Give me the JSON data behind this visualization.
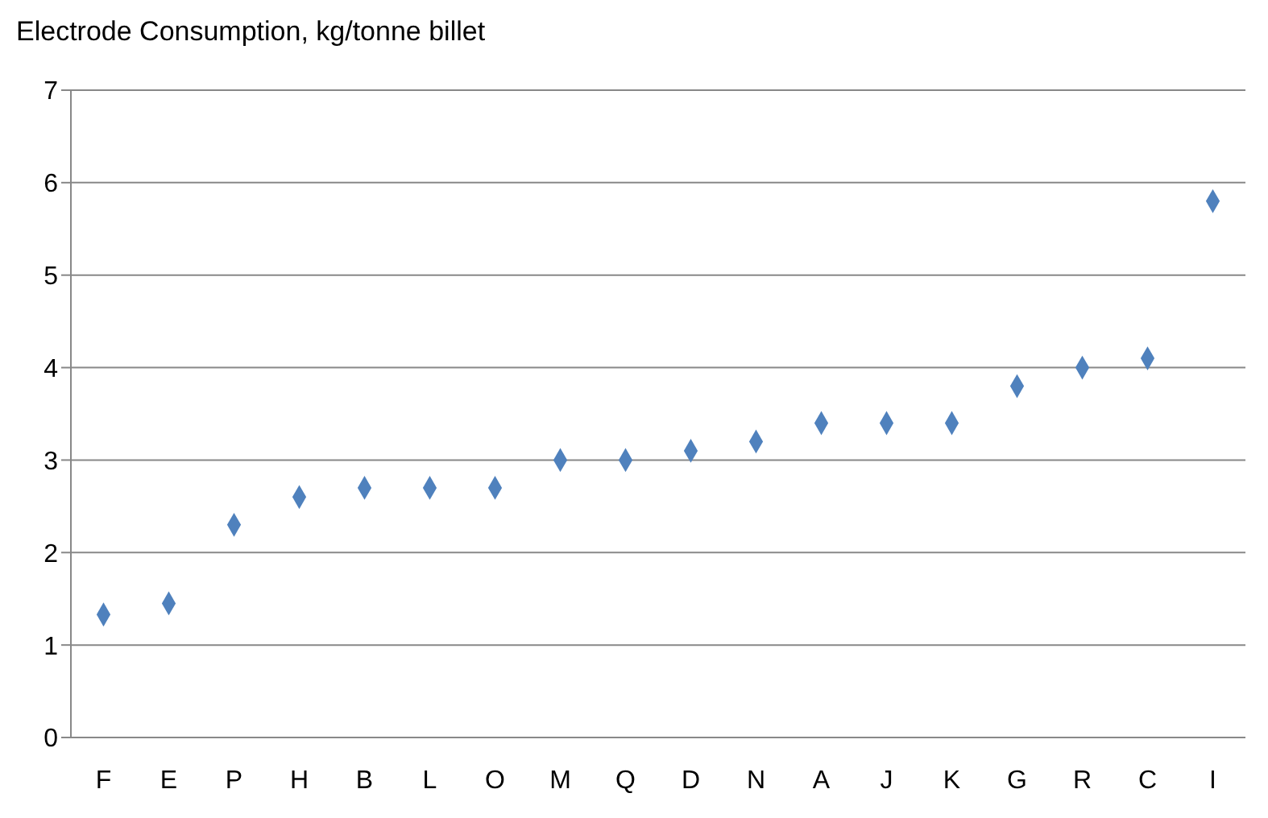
{
  "chart_data": {
    "type": "scatter",
    "title": "Electrode Consumption, kg/tonne billet",
    "categories": [
      "F",
      "E",
      "P",
      "H",
      "B",
      "L",
      "O",
      "M",
      "Q",
      "D",
      "N",
      "A",
      "J",
      "K",
      "G",
      "R",
      "C",
      "I"
    ],
    "values": [
      1.33,
      1.45,
      2.3,
      2.6,
      2.7,
      2.7,
      2.7,
      3.0,
      3.0,
      3.1,
      3.2,
      3.4,
      3.4,
      3.4,
      3.8,
      4.0,
      4.1,
      5.8
    ],
    "color": "#4f81bd",
    "marker": "diamond",
    "ylim": [
      0,
      7
    ],
    "yticks": [
      0,
      1,
      2,
      3,
      4,
      5,
      6,
      7
    ],
    "grid": "y",
    "legend": false
  }
}
